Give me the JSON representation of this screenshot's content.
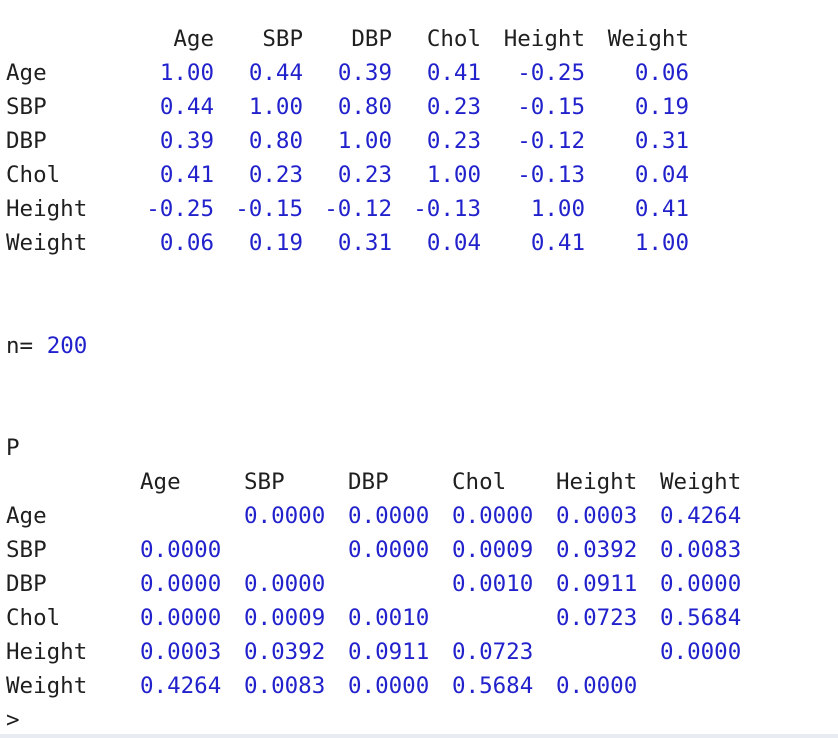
{
  "correlation": {
    "columns": [
      "Age",
      "SBP",
      "DBP",
      "Chol",
      "Height",
      "Weight"
    ],
    "rows": [
      {
        "name": "Age",
        "values": [
          "1.00",
          "0.44",
          "0.39",
          "0.41",
          "-0.25",
          "0.06"
        ]
      },
      {
        "name": "SBP",
        "values": [
          "0.44",
          "1.00",
          "0.80",
          "0.23",
          "-0.15",
          "0.19"
        ]
      },
      {
        "name": "DBP",
        "values": [
          "0.39",
          "0.80",
          "1.00",
          "0.23",
          "-0.12",
          "0.31"
        ]
      },
      {
        "name": "Chol",
        "values": [
          "0.41",
          "0.23",
          "0.23",
          "1.00",
          "-0.13",
          "0.04"
        ]
      },
      {
        "name": "Height",
        "values": [
          "-0.25",
          "-0.15",
          "-0.12",
          "-0.13",
          "1.00",
          "0.41"
        ]
      },
      {
        "name": "Weight",
        "values": [
          "0.06",
          "0.19",
          "0.31",
          "0.04",
          "0.41",
          "1.00"
        ]
      }
    ]
  },
  "n": {
    "label": "n=",
    "value": "200"
  },
  "pvalues": {
    "title": "P",
    "columns": [
      "Age",
      "SBP",
      "DBP",
      "Chol",
      "Height",
      "Weight"
    ],
    "rows": [
      {
        "name": "Age",
        "values": [
          "",
          "0.0000",
          "0.0000",
          "0.0000",
          "0.0003",
          "0.4264"
        ]
      },
      {
        "name": "SBP",
        "values": [
          "0.0000",
          "",
          "0.0000",
          "0.0009",
          "0.0392",
          "0.0083"
        ]
      },
      {
        "name": "DBP",
        "values": [
          "0.0000",
          "0.0000",
          "",
          "0.0010",
          "0.0911",
          "0.0000"
        ]
      },
      {
        "name": "Chol",
        "values": [
          "0.0000",
          "0.0009",
          "0.0010",
          "",
          "0.0723",
          "0.5684"
        ]
      },
      {
        "name": "Height",
        "values": [
          "0.0003",
          "0.0392",
          "0.0911",
          "0.0723",
          "",
          "0.0000"
        ]
      },
      {
        "name": "Weight",
        "values": [
          "0.4264",
          "0.0083",
          "0.0000",
          "0.5684",
          "0.0000",
          ""
        ]
      }
    ]
  },
  "prompt": {
    "symbol": ">"
  }
}
